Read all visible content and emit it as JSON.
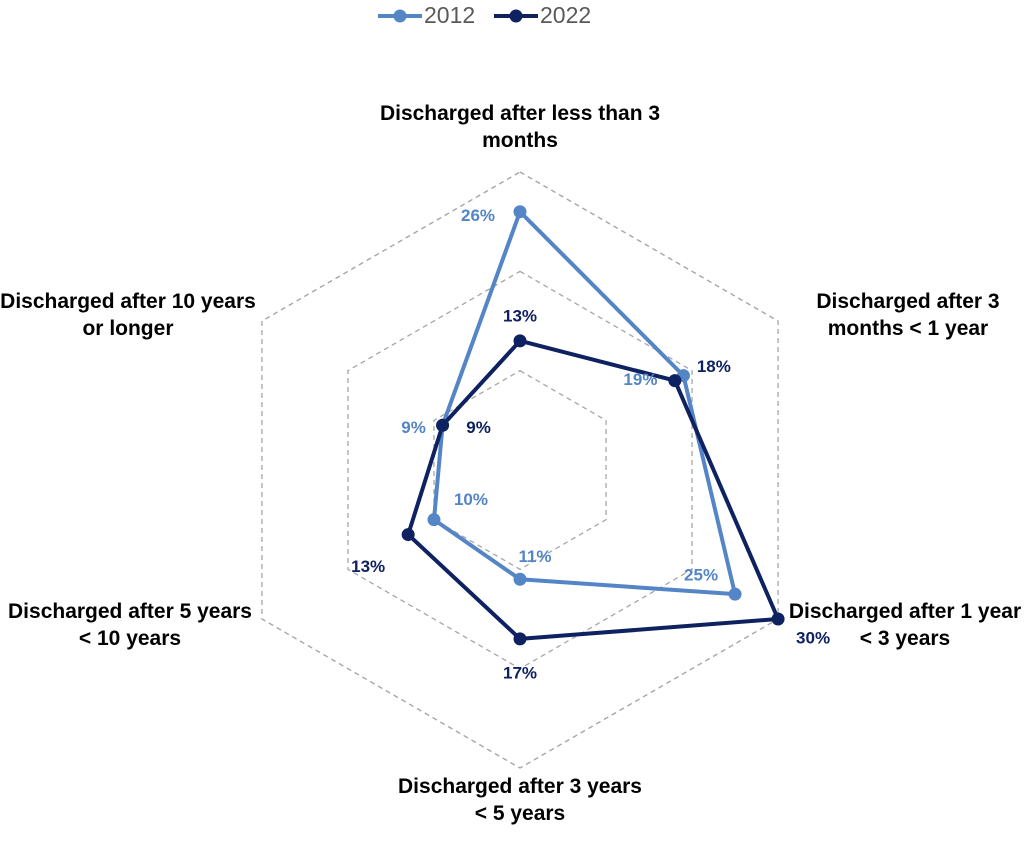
{
  "chart_data": {
    "type": "radar",
    "categories": [
      "Discharged after less than 3 months",
      "Discharged after 3 months < 1 year",
      "Discharged after 1 year < 3 years",
      "Discharged after 3 years < 5 years",
      "Discharged after 5 years < 10 years",
      "Discharged after 10 years or longer"
    ],
    "rlim": [
      0,
      30
    ],
    "rticks": [
      10,
      20,
      30
    ],
    "grid": true,
    "legend": "top",
    "series": [
      {
        "name": "2012",
        "color": "#5485c6",
        "values": [
          26,
          19,
          25,
          11,
          10,
          9
        ],
        "value_labels": [
          "26%",
          "19%",
          "25%",
          "11%",
          "10%",
          "9%"
        ]
      },
      {
        "name": "2022",
        "color": "#0e2160",
        "values": [
          13,
          18,
          30,
          17,
          13,
          9
        ],
        "value_labels": [
          "13%",
          "18%",
          "30%",
          "17%",
          "13%",
          "9%"
        ]
      }
    ]
  }
}
